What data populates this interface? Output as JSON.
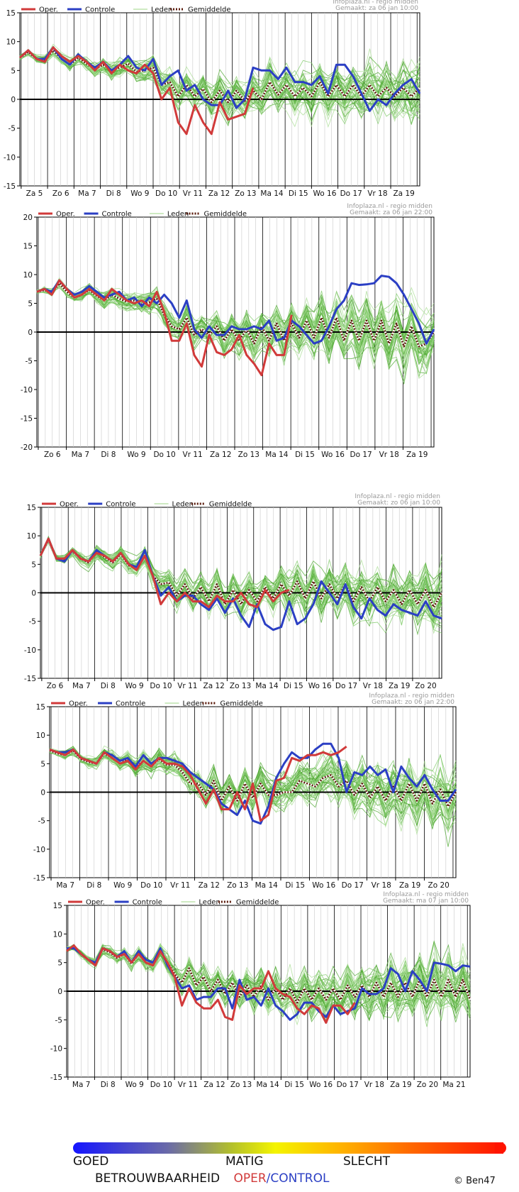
{
  "legend": {
    "oper": "Oper.",
    "controle": "Controle",
    "leden": "Leden",
    "gemiddelde": "Gemiddelde"
  },
  "colors": {
    "oper": "#d13a3a",
    "controle": "#2b3fc4",
    "leden": "#5db83f",
    "gemiddelde": "#5a1a0a",
    "zero_line": "#000000",
    "grid": "#000000"
  },
  "footer": {
    "goed": "GOED",
    "matig": "MATIG",
    "slecht": "SLECHT",
    "betrouwbaarheid": "BETROUWBAARHEID",
    "oper": "OPER",
    "slash": "/",
    "control": "CONTROL",
    "copyright": "© Ben47"
  },
  "chart_data": [
    {
      "type": "line",
      "source": "Infoplaza.nl - regio midden",
      "made": "Gemaakt: za 06 jan 10:00",
      "ylim": [
        -15,
        15
      ],
      "yticks": [
        -15,
        -10,
        -5,
        0,
        5,
        10,
        15
      ],
      "day_labels": [
        "Za 5",
        "Zo 6",
        "Ma 7",
        "Di 8",
        "Wo 9",
        "Do 10",
        "Vr 11",
        "Za 12",
        "Zo 13",
        "Ma 14",
        "Di 15",
        "Wo 16",
        "Do 17",
        "Vr 18",
        "Za 19"
      ],
      "grid": true,
      "series": [
        {
          "name": "Oper.",
          "values": [
            7.2,
            8.5,
            7.0,
            6.5,
            9.0,
            7.5,
            6.5,
            7.5,
            6.5,
            5.0,
            6.5,
            4.5,
            6.0,
            5.0,
            4.5,
            6.0,
            4.5,
            0.0,
            2.0,
            -4.0,
            -6.0,
            -1.0,
            -4.0,
            -6.0,
            -0.5,
            -3.5,
            -3.0,
            -2.5,
            2.0
          ]
        },
        {
          "name": "Controle",
          "values": [
            7.2,
            8.5,
            7.0,
            7.0,
            9.0,
            7.0,
            6.0,
            7.8,
            6.5,
            5.5,
            6.5,
            5.0,
            6.0,
            7.5,
            5.5,
            5.0,
            7.0,
            2.5,
            4.0,
            5.0,
            1.5,
            2.5,
            0.0,
            -1.0,
            -1.0,
            1.5,
            -1.5,
            0.0,
            5.5,
            5.0,
            5.0,
            3.5,
            5.5,
            3.0,
            3.0,
            2.5,
            4.0,
            1.0,
            6.0,
            6.0,
            4.0,
            1.0,
            -2.0,
            0.0,
            -1.0,
            1.0,
            2.5,
            3.5,
            1.0
          ]
        },
        {
          "name": "Gemiddelde",
          "values": [
            7.2,
            8.2,
            7.0,
            6.8,
            8.5,
            7.0,
            6.0,
            7.2,
            6.2,
            5.2,
            6.0,
            5.0,
            5.5,
            6.2,
            4.8,
            5.0,
            5.5,
            2.5,
            3.0,
            0.5,
            2.5,
            0.5,
            1.8,
            -0.5,
            1.5,
            -0.5,
            1.5,
            -0.3,
            1.5,
            0.0,
            3.0,
            0.8,
            2.5,
            0.5,
            2.0,
            0.5,
            3.0,
            0.5,
            2.5,
            0.5,
            2.5,
            0.5,
            2.5,
            0.5,
            2.0,
            0.5,
            2.0,
            0.5,
            2.0
          ]
        }
      ]
    },
    {
      "type": "line",
      "source": "Infoplaza.nl - regio midden",
      "made": "Gemaakt: za 06 jan 22:00",
      "ylim": [
        -20,
        20
      ],
      "yticks": [
        -20,
        -15,
        -10,
        -5,
        0,
        5,
        10,
        15,
        20
      ],
      "day_labels": [
        "Zo 6",
        "Ma 7",
        "Di 8",
        "Wo 9",
        "Do 10",
        "Vr 11",
        "Za 12",
        "Zo 13",
        "Ma 14",
        "Di 15",
        "Wo 16",
        "Do 17",
        "Vr 18",
        "Za 19"
      ],
      "grid": true,
      "series": [
        {
          "name": "Oper.",
          "values": [
            7.0,
            7.5,
            6.5,
            9.0,
            7.5,
            6.0,
            6.5,
            7.5,
            6.5,
            5.5,
            7.5,
            6.5,
            5.5,
            5.0,
            5.5,
            4.5,
            7.0,
            3.5,
            -1.5,
            -1.5,
            1.5,
            -4.0,
            -6.0,
            -0.5,
            -3.5,
            -4.0,
            -3.0,
            -0.5,
            -4.0,
            -5.5,
            -7.5,
            -2.0,
            -4.0,
            -4.0,
            3.0
          ]
        },
        {
          "name": "Controle",
          "values": [
            7.0,
            7.5,
            7.0,
            9.0,
            7.5,
            6.5,
            7.0,
            8.0,
            7.0,
            6.0,
            6.5,
            7.0,
            5.5,
            6.0,
            4.5,
            6.0,
            5.0,
            6.5,
            5.0,
            2.5,
            5.5,
            0.5,
            -1.0,
            1.0,
            -0.5,
            -0.5,
            1.0,
            0.5,
            0.5,
            1.0,
            0.5,
            2.0,
            -1.5,
            -1.0,
            2.0,
            1.0,
            -0.5,
            -2.0,
            -1.5,
            1.0,
            4.0,
            5.5,
            8.5,
            8.2,
            8.3,
            8.5,
            9.8,
            9.6,
            8.5,
            6.5,
            4.0,
            1.5,
            -2.0,
            0.5
          ]
        },
        {
          "name": "Gemiddelde",
          "values": [
            7.0,
            7.3,
            6.8,
            8.5,
            7.0,
            6.0,
            6.5,
            7.3,
            6.3,
            5.5,
            6.5,
            5.8,
            5.3,
            5.5,
            4.8,
            5.2,
            5.8,
            3.0,
            1.0,
            0.5,
            2.5,
            -0.5,
            0.5,
            -0.5,
            1.0,
            -1.5,
            0.5,
            -1.5,
            0.5,
            -2.0,
            1.0,
            -1.5,
            1.5,
            -1.5,
            1.5,
            -1.0,
            2.0,
            -1.0,
            2.5,
            -1.0,
            2.5,
            -1.5,
            2.0,
            -1.5,
            2.0,
            -1.5,
            2.0,
            -2.0,
            1.5,
            -2.5,
            1.0,
            -2.5,
            -2.0,
            0.0
          ]
        }
      ]
    },
    {
      "type": "line",
      "source": "Infoplaza.nl - regio midden",
      "made": "Gemaakt: zo 06 jan 10:00",
      "ylim": [
        -15,
        15
      ],
      "yticks": [
        -15,
        -10,
        -5,
        0,
        5,
        10,
        15
      ],
      "day_labels": [
        "Zo 6",
        "Ma 7",
        "Di 8",
        "Wo 9",
        "Do 10",
        "Vr 11",
        "Za 12",
        "Zo 13",
        "Ma 14",
        "Di 15",
        "Wo 16",
        "Do 17",
        "Vr 18",
        "Za 19",
        "Zo 20"
      ],
      "grid": true,
      "series": [
        {
          "name": "Oper.",
          "values": [
            6.5,
            9.5,
            6.0,
            6.0,
            7.5,
            6.0,
            5.5,
            7.0,
            6.5,
            5.5,
            7.0,
            5.0,
            4.0,
            6.5,
            3.0,
            -2.0,
            0.0,
            -1.5,
            0.0,
            -1.5,
            -1.5,
            -2.5,
            -0.5,
            -1.5,
            -1.5,
            0.0,
            -2.0,
            -2.5,
            0.5,
            -1.5,
            0.0,
            0.5
          ]
        },
        {
          "name": "Controle",
          "values": [
            6.5,
            9.5,
            6.0,
            5.5,
            7.5,
            6.0,
            5.5,
            7.5,
            6.5,
            5.5,
            7.0,
            5.0,
            4.5,
            7.5,
            3.0,
            -0.5,
            1.0,
            -1.5,
            -0.5,
            -0.5,
            -2.0,
            -3.0,
            -1.0,
            -3.5,
            -1.0,
            -4.0,
            -6.0,
            -2.0,
            -5.5,
            -6.5,
            -6.0,
            -1.5,
            -5.5,
            -4.5,
            -2.0,
            2.0,
            0.0,
            -2.0,
            1.5,
            -2.5,
            -4.5,
            -1.0,
            -3.0,
            -4.0,
            -2.0,
            -3.0,
            -3.5,
            -4.0,
            -1.5,
            -4.0,
            -4.5
          ]
        },
        {
          "name": "Gemiddelde",
          "values": [
            6.5,
            9.3,
            6.0,
            5.8,
            7.3,
            6.0,
            5.3,
            7.2,
            6.3,
            5.3,
            6.8,
            4.8,
            4.3,
            6.5,
            3.0,
            1.5,
            1.8,
            -0.5,
            1.5,
            -1.0,
            1.0,
            -1.5,
            1.5,
            -2.0,
            0.5,
            -2.0,
            0.5,
            -1.5,
            1.0,
            -1.0,
            1.5,
            -0.5,
            2.0,
            -1.0,
            2.0,
            -1.0,
            1.5,
            -1.0,
            1.5,
            -1.5,
            1.0,
            -1.5,
            1.0,
            -1.5,
            0.5,
            -2.0,
            0.5,
            -2.0,
            0.5,
            -2.5,
            0.0
          ]
        }
      ]
    },
    {
      "type": "line",
      "source": "Infoplaza.nl - regio midden",
      "made": "Gemaakt: zo 06 jan 22:00",
      "ylim": [
        -15,
        15
      ],
      "yticks": [
        -15,
        -10,
        -5,
        0,
        5,
        10,
        15
      ],
      "day_labels": [
        "Ma 7",
        "Di 8",
        "Wo 9",
        "Do 10",
        "Vr 11",
        "Za 12",
        "Zo 13",
        "Ma 14",
        "Di 15",
        "Wo 16",
        "Do 17",
        "Vr 18",
        "Za 19",
        "Zo 20"
      ],
      "grid": true,
      "series": [
        {
          "name": "Oper.",
          "values": [
            7.5,
            7.0,
            6.5,
            7.5,
            6.0,
            5.5,
            5.0,
            7.0,
            6.0,
            5.0,
            5.5,
            4.0,
            5.5,
            4.5,
            6.0,
            5.0,
            5.0,
            4.5,
            3.0,
            0.5,
            -2.0,
            0.5,
            -3.0,
            -3.0,
            0.0,
            -3.0,
            1.5,
            -5.0,
            -4.0,
            2.0,
            2.5,
            6.0,
            5.5,
            6.5,
            6.5,
            7.0,
            6.5,
            7.0,
            8.0
          ]
        },
        {
          "name": "Controle",
          "values": [
            7.5,
            7.0,
            7.0,
            7.5,
            6.0,
            5.5,
            5.0,
            7.0,
            6.5,
            5.5,
            6.0,
            4.5,
            6.5,
            5.0,
            6.0,
            6.0,
            5.5,
            5.0,
            3.5,
            2.5,
            1.5,
            0.5,
            -2.0,
            -3.0,
            -4.0,
            -1.5,
            -5.0,
            -5.5,
            -2.5,
            2.5,
            5.0,
            7.0,
            6.0,
            6.0,
            7.5,
            8.5,
            8.5,
            6.0,
            0.0,
            3.5,
            3.0,
            4.5,
            3.0,
            4.0,
            0.0,
            4.5,
            2.5,
            1.0,
            3.0,
            0.5,
            -1.5,
            -1.5,
            0.5
          ]
        },
        {
          "name": "Gemiddelde",
          "values": [
            7.3,
            6.8,
            6.5,
            7.3,
            5.8,
            5.3,
            5.0,
            6.8,
            6.0,
            5.0,
            5.8,
            4.3,
            5.5,
            4.5,
            5.8,
            4.8,
            4.8,
            3.5,
            1.5,
            1.5,
            -0.5,
            2.0,
            -1.5,
            1.0,
            -1.5,
            1.5,
            -1.0,
            1.5,
            -0.5,
            -0.5,
            0.0,
            0.0,
            2.0,
            1.5,
            1.0,
            2.5,
            3.0,
            1.0,
            2.0,
            -0.5,
            1.5,
            -1.0,
            1.0,
            -1.5,
            1.0,
            -1.5,
            1.5,
            -1.5,
            1.5,
            -2.0,
            0.5,
            -2.5,
            0.0
          ]
        }
      ]
    },
    {
      "type": "line",
      "source": "Infoplaza.nl - regio midden",
      "made": "Gemaakt: ma 07 jan 10:00",
      "ylim": [
        -15,
        15
      ],
      "yticks": [
        -15,
        -10,
        -5,
        0,
        5,
        10,
        15
      ],
      "day_labels": [
        "Ma 7",
        "Di 8",
        "Wo 9",
        "Do 10",
        "Vr 11",
        "Za 12",
        "Zo 13",
        "Ma 14",
        "Di 15",
        "Wo 16",
        "Do 17",
        "Vr 18",
        "Za 19",
        "Zo 20",
        "Ma 21"
      ],
      "grid": true,
      "series": [
        {
          "name": "Oper.",
          "values": [
            7.0,
            8.0,
            6.5,
            5.5,
            4.5,
            7.5,
            7.0,
            6.0,
            6.5,
            5.0,
            6.5,
            5.0,
            4.5,
            7.0,
            5.0,
            2.5,
            -2.5,
            0.5,
            -2.0,
            -3.0,
            -3.0,
            -1.5,
            -4.5,
            -5.0,
            1.0,
            -0.5,
            0.5,
            0.5,
            3.5,
            0.5,
            -0.5,
            -1.0,
            -3.0,
            -4.0,
            -2.5,
            -3.0,
            -5.5,
            -2.5,
            -2.5,
            -4.0,
            -2.0
          ]
        },
        {
          "name": "Controle",
          "values": [
            7.5,
            7.5,
            6.5,
            5.5,
            5.0,
            7.5,
            7.0,
            6.0,
            7.0,
            5.0,
            7.0,
            5.5,
            5.0,
            7.5,
            4.5,
            2.5,
            0.5,
            1.0,
            -1.5,
            -1.0,
            -1.0,
            0.5,
            0.5,
            -3.0,
            2.0,
            -1.5,
            -1.0,
            -2.5,
            0.5,
            -2.5,
            -3.5,
            -5.0,
            -4.0,
            -2.0,
            -2.0,
            -3.5,
            -4.5,
            -2.5,
            -4.0,
            -3.5,
            -3.0,
            0.5,
            -0.5,
            -0.5,
            0.5,
            4.0,
            3.0,
            0.0,
            3.5,
            2.0,
            0.0,
            5.0,
            4.8,
            4.5,
            3.5,
            4.5,
            4.3
          ]
        },
        {
          "name": "Gemiddelde",
          "values": [
            7.3,
            7.7,
            6.5,
            5.5,
            5.0,
            7.3,
            6.8,
            5.8,
            6.5,
            4.8,
            6.5,
            5.0,
            4.5,
            7.0,
            5.0,
            3.0,
            1.5,
            4.0,
            1.0,
            2.5,
            0.0,
            2.0,
            -0.5,
            1.5,
            -1.0,
            1.0,
            -1.0,
            1.0,
            -1.5,
            0.5,
            -1.5,
            0.5,
            -2.0,
            0.5,
            -1.5,
            0.5,
            -1.5,
            0.5,
            -1.5,
            1.0,
            -1.0,
            1.0,
            -1.0,
            1.5,
            -1.0,
            1.5,
            -1.0,
            1.5,
            -1.0,
            2.0,
            -1.0,
            2.0,
            -1.0,
            2.0,
            -1.0,
            2.0,
            -1.5
          ]
        }
      ]
    }
  ]
}
